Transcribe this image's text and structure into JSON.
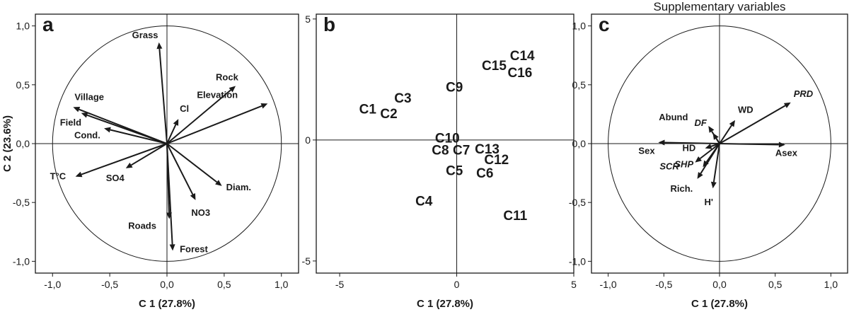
{
  "chart_data": [
    {
      "type": "scatter",
      "panel_letter": "a",
      "title": "",
      "xlabel": "C 1 (27.8%)",
      "ylabel": "C 2 (23.6%)",
      "xlim": [
        -1.15,
        1.15
      ],
      "ylim": [
        -1.1,
        1.1
      ],
      "correlation_circle": true,
      "xticks": [
        "-1,0",
        "-0,5",
        "0,0",
        "0,5",
        "1,0"
      ],
      "xtick_values": [
        -1.0,
        -0.5,
        0.0,
        0.5,
        1.0
      ],
      "yticks": [
        "1,0",
        "0,5",
        "0,0",
        "-0,5",
        "-1,0"
      ],
      "ytick_values": [
        1.0,
        0.5,
        0.0,
        -0.5,
        -1.0
      ],
      "vectors": [
        {
          "name": "Grass",
          "x": -0.07,
          "y": 0.86
        },
        {
          "name": "Rock",
          "x": 0.6,
          "y": 0.49
        },
        {
          "name": "Elevation",
          "x": 0.88,
          "y": 0.34
        },
        {
          "name": "Village",
          "x": -0.82,
          "y": 0.31
        },
        {
          "name": "Field",
          "x": -0.75,
          "y": 0.26
        },
        {
          "name": "Cond.",
          "x": -0.55,
          "y": 0.13
        },
        {
          "name": "Cl",
          "x": 0.1,
          "y": 0.21
        },
        {
          "name": "T°C",
          "x": -0.8,
          "y": -0.28
        },
        {
          "name": "SO4",
          "x": -0.36,
          "y": -0.21
        },
        {
          "name": "Diam.",
          "x": 0.48,
          "y": -0.36
        },
        {
          "name": "NO3",
          "x": 0.25,
          "y": -0.48
        },
        {
          "name": "Roads",
          "x": 0.02,
          "y": -0.64
        },
        {
          "name": "Forest",
          "x": 0.05,
          "y": -0.91
        }
      ]
    },
    {
      "type": "scatter",
      "panel_letter": "b",
      "title": "",
      "xlabel": "C 1 (27.8%)",
      "ylabel": "",
      "xlim": [
        -6.0,
        5.0
      ],
      "ylim": [
        -5.5,
        5.2
      ],
      "xticks": [
        "-5",
        "0",
        "5"
      ],
      "xtick_values": [
        -5,
        0,
        5
      ],
      "yticks": [
        "5",
        "0",
        "-5"
      ],
      "ytick_values": [
        5,
        0,
        -5
      ],
      "points": [
        {
          "label": "C14",
          "x": 2.8,
          "y": 3.5
        },
        {
          "label": "C15",
          "x": 1.6,
          "y": 3.1
        },
        {
          "label": "C16",
          "x": 2.7,
          "y": 2.8
        },
        {
          "label": "C9",
          "x": -0.1,
          "y": 2.2
        },
        {
          "label": "C3",
          "x": -2.3,
          "y": 1.75
        },
        {
          "label": "C1",
          "x": -3.8,
          "y": 1.3
        },
        {
          "label": "C2",
          "x": -2.9,
          "y": 1.1
        },
        {
          "label": "C10",
          "x": -0.4,
          "y": 0.1
        },
        {
          "label": "C8",
          "x": -0.7,
          "y": -0.4
        },
        {
          "label": "C7",
          "x": 0.2,
          "y": -0.4
        },
        {
          "label": "C13",
          "x": 1.3,
          "y": -0.35
        },
        {
          "label": "C12",
          "x": 1.7,
          "y": -0.8
        },
        {
          "label": "C5",
          "x": -0.1,
          "y": -1.25
        },
        {
          "label": "C6",
          "x": 1.2,
          "y": -1.35
        },
        {
          "label": "C4",
          "x": -1.4,
          "y": -2.5
        },
        {
          "label": "C11",
          "x": 2.5,
          "y": -3.1
        }
      ]
    },
    {
      "type": "scatter",
      "panel_letter": "c",
      "title": "Supplementary variables",
      "xlabel": "C 1 (27.8%)",
      "ylabel": "",
      "xlim": [
        -1.15,
        1.15
      ],
      "ylim": [
        -1.1,
        1.1
      ],
      "correlation_circle": true,
      "xticks": [
        "-1,0",
        "-0,5",
        "0,0",
        "0,5",
        "1,0"
      ],
      "xtick_values": [
        -1.0,
        -0.5,
        0.0,
        0.5,
        1.0
      ],
      "yticks": [
        "1,0",
        "0,5",
        "0,0",
        "-0,5",
        "-1,0"
      ],
      "ytick_values": [
        1.0,
        0.5,
        0.0,
        -0.5,
        -1.0
      ],
      "vectors": [
        {
          "name": "PRD",
          "x": 0.64,
          "y": 0.35,
          "italic": true
        },
        {
          "name": "WD",
          "x": 0.14,
          "y": 0.2
        },
        {
          "name": "Abund",
          "x": -0.1,
          "y": 0.15
        },
        {
          "name": "DF",
          "x": -0.06,
          "y": 0.09,
          "italic": true
        },
        {
          "name": "Sex",
          "x": -0.55,
          "y": 0.01
        },
        {
          "name": "Asex",
          "x": 0.59,
          "y": -0.01
        },
        {
          "name": "HD",
          "x": -0.13,
          "y": -0.04
        },
        {
          "name": "SCR",
          "x": -0.22,
          "y": -0.16,
          "italic": true
        },
        {
          "name": "SHP",
          "x": -0.15,
          "y": -0.2,
          "italic": true
        },
        {
          "name": "Rich.",
          "x": -0.2,
          "y": -0.3
        },
        {
          "name": "H'",
          "x": -0.06,
          "y": -0.38
        }
      ]
    }
  ]
}
